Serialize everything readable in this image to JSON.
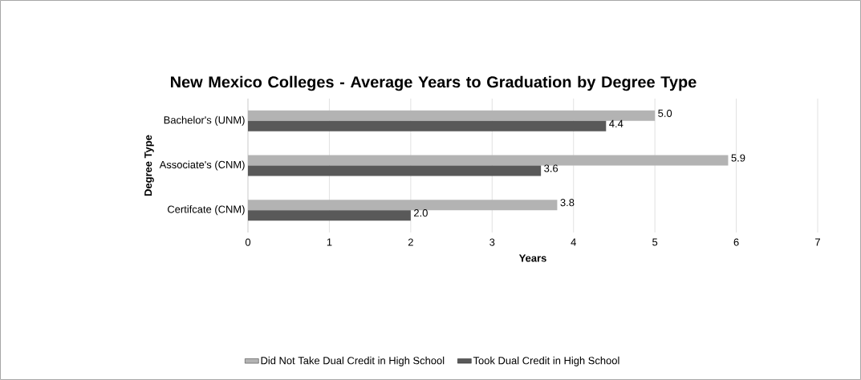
{
  "chart_data": {
    "type": "bar",
    "orientation": "horizontal",
    "title": "New Mexico Colleges - Average Years to Graduation by Degree Type",
    "xlabel": "Years",
    "ylabel": "Degree Type",
    "categories": [
      "Bachelor's (UNM)",
      "Associate's  (CNM)",
      "Certifcate (CNM)"
    ],
    "series": [
      {
        "name": "Did Not Take Dual Credit in High School",
        "color": "#b3b3b3",
        "values": [
          5.0,
          5.9,
          3.8
        ],
        "value_labels": [
          "5.0",
          "5.9",
          "3.8"
        ]
      },
      {
        "name": "Took Dual Credit in High School",
        "color": "#595959",
        "values": [
          4.4,
          3.6,
          2.0
        ],
        "value_labels": [
          "4.4",
          "3.6",
          "2.0"
        ]
      }
    ],
    "xlim": [
      0,
      7
    ],
    "xticks": [
      0,
      1,
      2,
      3,
      4,
      5,
      6,
      7
    ],
    "grid": "x",
    "legend": "bottom"
  }
}
